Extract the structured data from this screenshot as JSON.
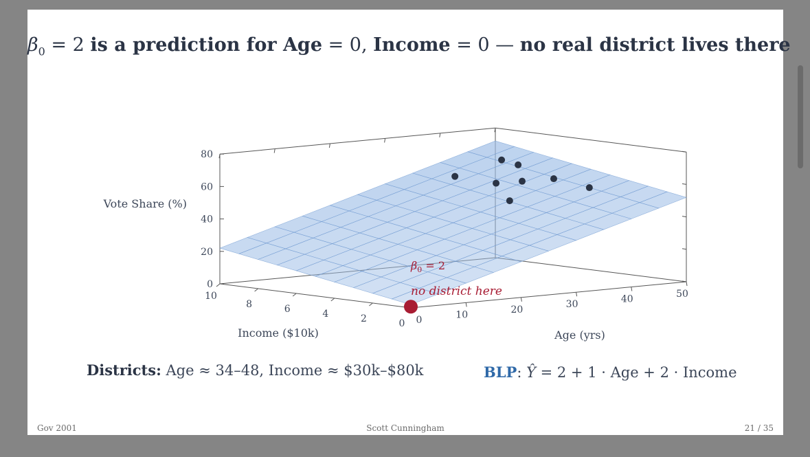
{
  "slide": {
    "title": {
      "beta_symbol": "β",
      "beta_sub": "0",
      "eq": " = 2 ",
      "part1": "is a prediction for Age",
      "eq_age": " = 0, ",
      "part2": "Income",
      "eq_income": " = 0 — ",
      "part3": "no real district lives there"
    },
    "districts": {
      "label": "Districts:",
      "text": " Age ≈ 34–48, Income ≈ $30k–$80k"
    },
    "blp": {
      "label": "BLP",
      "colon": ": ",
      "yhat": "Ŷ",
      "formula": " = 2 + 1 · Age + 2 · Income"
    },
    "footer": {
      "left": "Gov 2001",
      "center": "Scott Cunningham",
      "right": "21 / 35"
    }
  },
  "chart_data": {
    "type": "scatter",
    "subtype": "3d-regression-plane",
    "xlabel": "Age (yrs)",
    "ylabel": "Income ($10k)",
    "zlabel": "Vote Share (%)",
    "xlim": [
      0,
      50
    ],
    "ylim": [
      0,
      10
    ],
    "zlim": [
      0,
      80
    ],
    "x_ticks": [
      "0",
      "10",
      "20",
      "30",
      "40",
      "50"
    ],
    "y_ticks": [
      "0",
      "2",
      "4",
      "6",
      "8",
      "10"
    ],
    "z_ticks": [
      "0",
      "20",
      "40",
      "60",
      "80"
    ],
    "plane": {
      "intercept": 2,
      "age_coef": 1,
      "income_coef": 2
    },
    "points": [
      {
        "age": 34,
        "income": 7.5,
        "vote": 59
      },
      {
        "age": 38,
        "income": 6.5,
        "vote": 55
      },
      {
        "age": 37,
        "income": 5.5,
        "vote": 46
      },
      {
        "age": 39,
        "income": 6.5,
        "vote": 69
      },
      {
        "age": 41,
        "income": 6.0,
        "vote": 56
      },
      {
        "age": 42,
        "income": 6.5,
        "vote": 65
      },
      {
        "age": 45,
        "income": 5.5,
        "vote": 57
      },
      {
        "age": 48,
        "income": 4.5,
        "vote": 52
      }
    ],
    "intercept_point": {
      "age": 0,
      "income": 0,
      "vote": 2
    },
    "annotations": {
      "beta_symbol": "β",
      "beta_sub": "0",
      "beta_eq": " = 2",
      "note": "no district here"
    },
    "colors": {
      "plane": "#9dbde6",
      "plane_edge": "#6e98d0",
      "point": "#2b3445",
      "intercept": "#a81c33",
      "axis": "#555555"
    }
  }
}
